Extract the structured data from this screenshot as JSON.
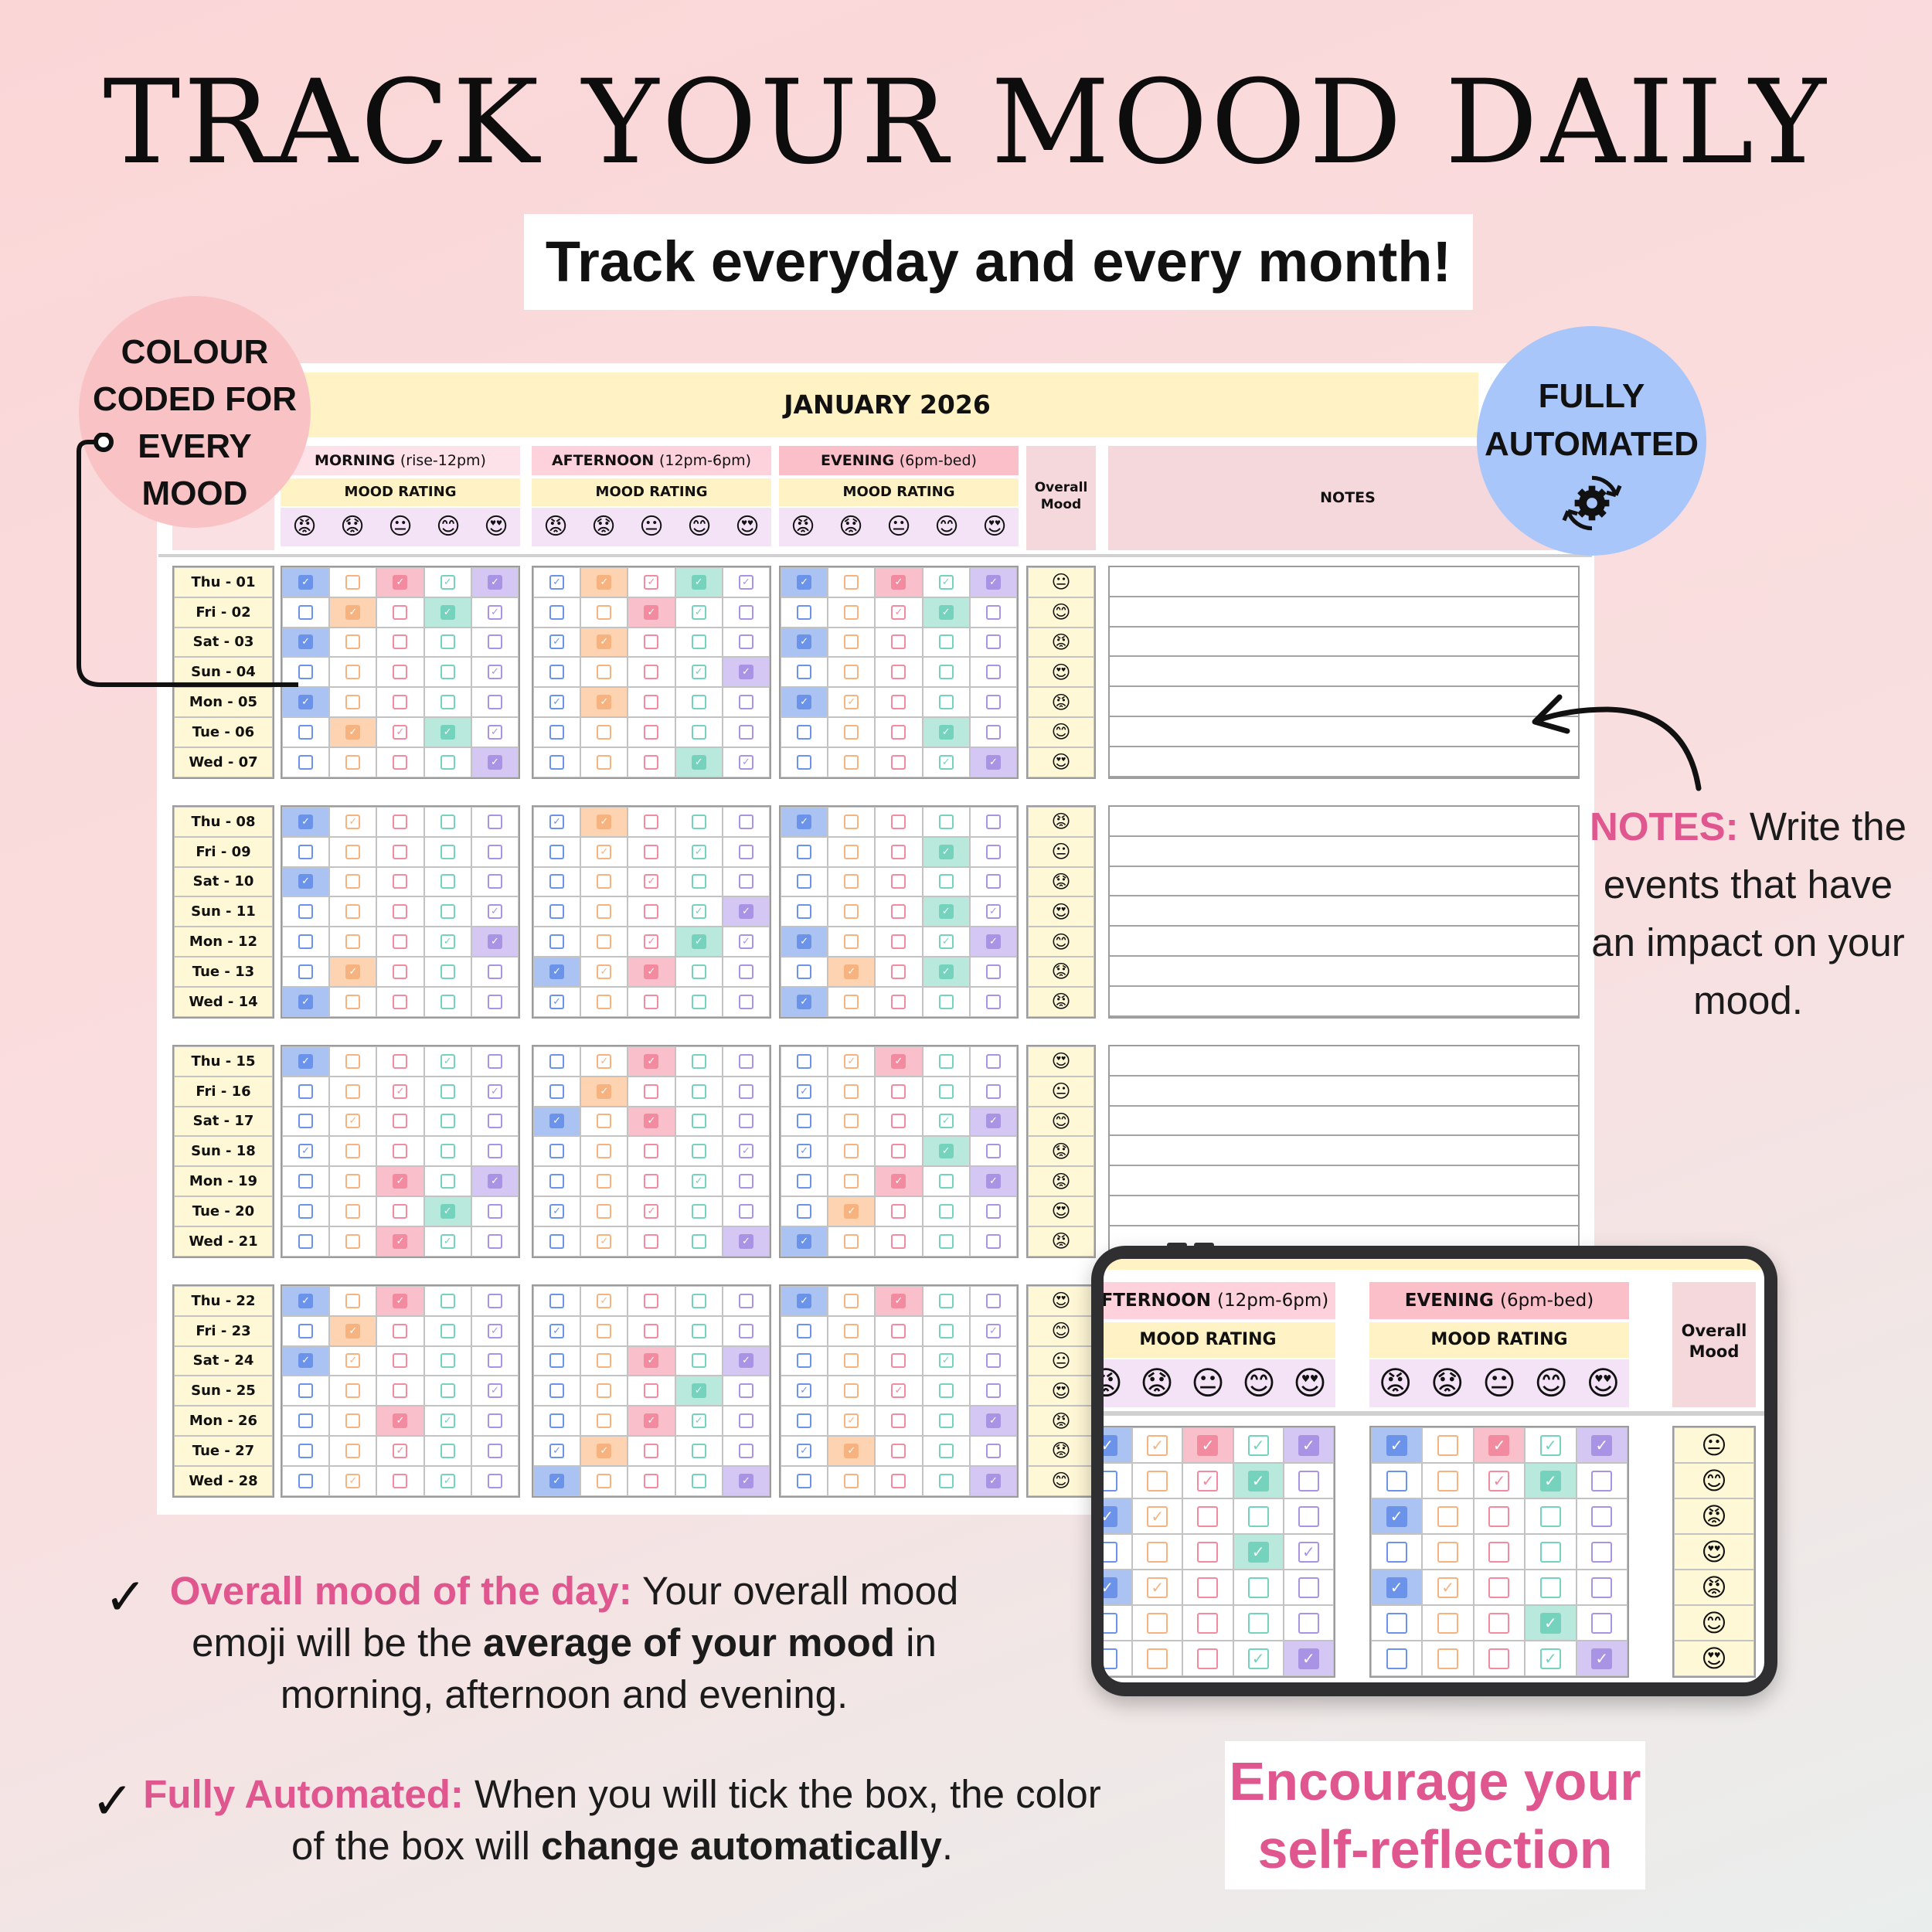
{
  "title": "TRACK YOUR MOOD DAILY",
  "subtitle": "Track everyday and every month!",
  "left_bubble": [
    "COLOUR",
    "CODED FOR",
    "EVERY",
    "MOOD"
  ],
  "right_bubble": [
    "FULLY",
    "AUTOMATED"
  ],
  "icons": {
    "gear": "gear-sync-icon",
    "arrow": "curved-arrow-icon",
    "check": "checkmark-icon"
  },
  "emoji_scale": [
    "😡",
    "😟",
    "😐",
    "😊",
    "😍"
  ],
  "palette": [
    "#6b93ea",
    "#f6b380",
    "#f28b9f",
    "#74d2bd",
    "#a993e4"
  ],
  "palette_fill": [
    "#aac3f3",
    "#fdd3b2",
    "#f9bfca",
    "#b8e9dc",
    "#d4c7f3"
  ],
  "sheet": {
    "month": "JANUARY 2026",
    "sections": [
      {
        "name": "MORNING",
        "time": "(rise-12pm)",
        "color": "#fde2ea"
      },
      {
        "name": "AFTERNOON",
        "time": "(12pm-6pm)",
        "color": "#fdd2dc"
      },
      {
        "name": "EVENING",
        "time": "(6pm-bed)",
        "color": "#fbbfca"
      }
    ],
    "rating_label": "MOOD RATING",
    "overall_label": [
      "Overall",
      "Mood"
    ],
    "notes_label": "NOTES",
    "weeks": [
      {
        "days": [
          "Thu - 01",
          "Fri - 02",
          "Sat - 03",
          "Sun - 04",
          "Mon - 05",
          "Tue - 06",
          "Wed - 07"
        ],
        "overall": [
          "😐",
          "😊",
          "😡",
          "😍",
          "😡",
          "😊",
          "😍"
        ],
        "checks": [
          [
            "10111",
            "01011",
            "10000",
            "00001",
            "10000",
            "01111",
            "00001"
          ],
          [
            "11111",
            "00110",
            "11000",
            "00011",
            "11000",
            "00000",
            "00011"
          ],
          [
            "10111",
            "00110",
            "10000",
            "00000",
            "11000",
            "00010",
            "00011"
          ]
        ],
        "active": [
          "01234",
          "10001",
          "01000",
          "00004",
          "01000",
          "00000",
          "00004"
        ]
      },
      {
        "days": [
          "Thu - 08",
          "Fri - 09",
          "Sat - 10",
          "Sun - 11",
          "Mon - 12",
          "Tue - 13",
          "Wed - 14"
        ],
        "overall": [
          "😡",
          "😐",
          "😟",
          "😍",
          "😊",
          "😟",
          "😡"
        ],
        "checks": [
          [
            "11000",
            "00000",
            "10000",
            "00001",
            "00011",
            "01000",
            "10000"
          ],
          [
            "11000",
            "01010",
            "00100",
            "00011",
            "00111",
            "11100",
            "10000"
          ],
          [
            "10000",
            "00010",
            "00000",
            "00011",
            "10011",
            "01010",
            "10000"
          ]
        ],
        "active": [
          "11000",
          "00000",
          "10000",
          "00001",
          "00011",
          "01000",
          "10000"
        ]
      }
    ]
  },
  "tablet": {
    "sections": [
      {
        "name": "AFTERNOON",
        "time": "(12pm-6pm)"
      },
      {
        "name": "EVENING",
        "time": "(6pm-bed)"
      }
    ],
    "rating_label": "MOOD RATING",
    "overall_label": [
      "Overall",
      "Mood"
    ],
    "overall": [
      "😐",
      "😊",
      "😡",
      "😍",
      "😡",
      "😊",
      "😍"
    ]
  },
  "notes_callout": {
    "label": "NOTES:",
    "text": "Write the events that have an impact on your mood."
  },
  "bullet1": {
    "label": "Overall mood of the day:",
    "text_a": "Your overall mood emoji will be the",
    "bold": "average of your mood",
    "text_b": "in morning, afternoon and evening."
  },
  "bullet2": {
    "label": "Fully Automated:",
    "text_a": "When you will tick the box, the color of the box will",
    "bold": "change automatically",
    "text_b": "."
  },
  "encourage": [
    "Encourage your",
    "self-reflection"
  ]
}
